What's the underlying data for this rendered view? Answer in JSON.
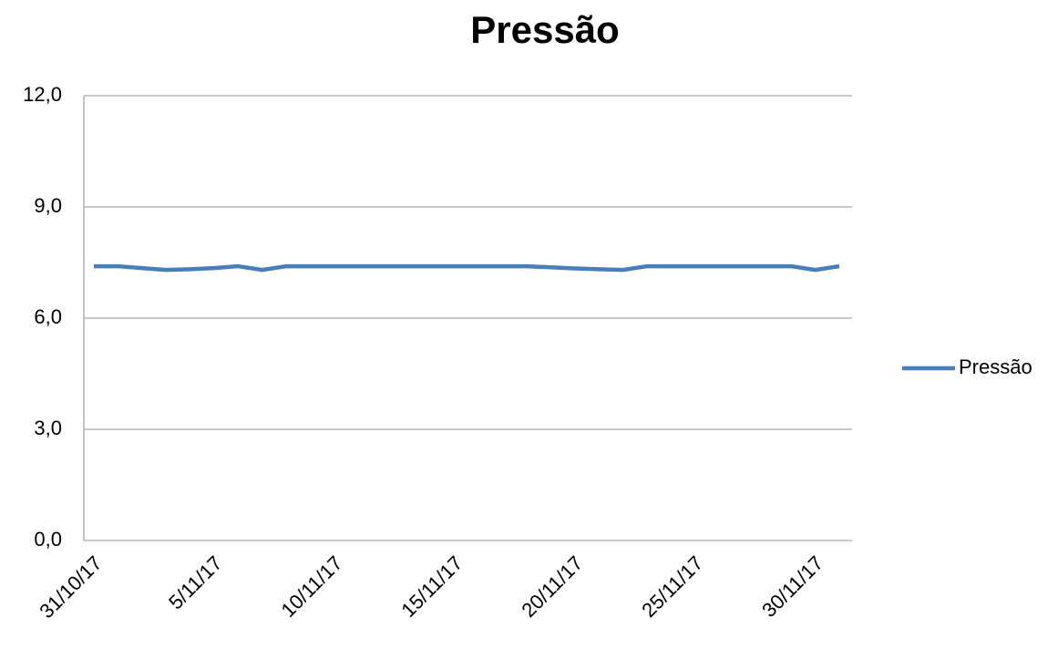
{
  "chart_data": {
    "type": "line",
    "title": "Pressão",
    "categories": [
      "31/10/17",
      null,
      null,
      null,
      null,
      "5/11/17",
      null,
      null,
      null,
      null,
      "10/11/17",
      null,
      null,
      null,
      null,
      "15/11/17",
      null,
      null,
      null,
      null,
      "20/11/17",
      null,
      null,
      null,
      null,
      "25/11/17",
      null,
      null,
      null,
      null,
      "30/11/17",
      null
    ],
    "series": [
      {
        "name": "Pressão",
        "color": "#4a7ebb",
        "values": [
          7.4,
          7.4,
          7.35,
          7.3,
          7.32,
          7.35,
          7.4,
          7.3,
          7.4,
          7.4,
          7.4,
          7.4,
          7.4,
          7.4,
          7.4,
          7.4,
          7.4,
          7.4,
          7.4,
          7.37,
          7.34,
          7.32,
          7.3,
          7.4,
          7.4,
          7.4,
          7.4,
          7.4,
          7.4,
          7.4,
          7.3,
          7.4
        ]
      }
    ],
    "ylim": [
      0,
      12
    ],
    "yticks": [
      {
        "value": 0,
        "label": "0,0"
      },
      {
        "value": 3,
        "label": "3,0"
      },
      {
        "value": 6,
        "label": "6,0"
      },
      {
        "value": 9,
        "label": "9,0"
      },
      {
        "value": 12,
        "label": "12,0"
      }
    ],
    "grid": true,
    "legend": "right"
  }
}
